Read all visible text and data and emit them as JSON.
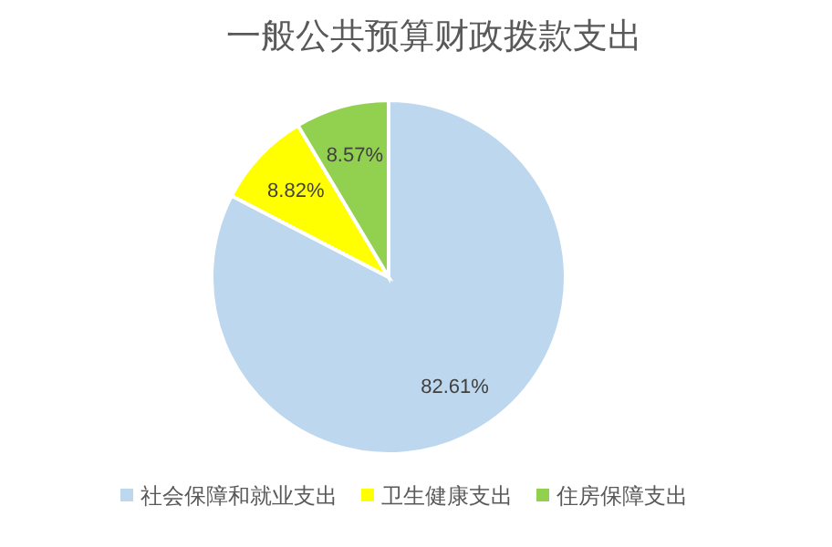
{
  "chart_data": {
    "type": "pie",
    "title": "一般公共预算财政拨款支出",
    "categories": [
      "社会保障和就业支出",
      "卫生健康支出",
      "住房保障支出"
    ],
    "values": [
      82.61,
      8.82,
      8.57
    ],
    "colors": [
      "#bdd7ee",
      "#ffff00",
      "#92d050"
    ],
    "value_labels": [
      "82.61%",
      "8.82%",
      "8.57%"
    ],
    "legend": "bottom"
  }
}
